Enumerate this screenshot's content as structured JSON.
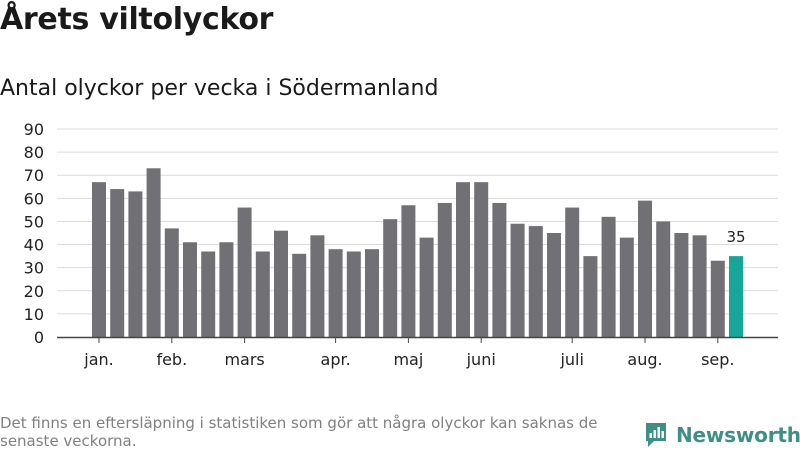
{
  "title": "Årets viltolyckor",
  "subtitle": "Antal olyckor per vecka i Södermanland",
  "footer_note": "Det finns en eftersläpning i statistiken som gör att några olyckor kan saknas de senaste veckorna.",
  "brand": {
    "name": "Newsworthy",
    "icon": "newsworthy-logo-icon",
    "color": "#3f8f86"
  },
  "chart_data": {
    "type": "bar",
    "title": "",
    "xlabel": "",
    "ylabel": "",
    "ylim": [
      0,
      90
    ],
    "yticks": [
      0,
      10,
      20,
      30,
      40,
      50,
      60,
      70,
      80,
      90
    ],
    "grid": true,
    "legend": "none",
    "month_labels": [
      {
        "label": "jan.",
        "week_index": 0.5
      },
      {
        "label": "feb.",
        "week_index": 4.5
      },
      {
        "label": "mars",
        "week_index": 8.5
      },
      {
        "label": "apr.",
        "week_index": 13.5
      },
      {
        "label": "maj",
        "week_index": 17.5
      },
      {
        "label": "juni",
        "week_index": 21.5
      },
      {
        "label": "juli",
        "week_index": 26.5
      },
      {
        "label": "aug.",
        "week_index": 30.5
      },
      {
        "label": "sep.",
        "week_index": 34.5
      }
    ],
    "values": [
      67,
      64,
      63,
      73,
      47,
      41,
      37,
      41,
      56,
      37,
      46,
      36,
      44,
      38,
      37,
      38,
      51,
      57,
      43,
      58,
      67,
      67,
      58,
      49,
      48,
      45,
      56,
      35,
      52,
      43,
      59,
      50,
      45,
      44,
      33,
      35
    ],
    "bar_color": "#717075",
    "highlight_color": "#17a69a",
    "highlight_index": 35,
    "data_labels": [
      {
        "index": 35,
        "text": "35"
      }
    ]
  }
}
